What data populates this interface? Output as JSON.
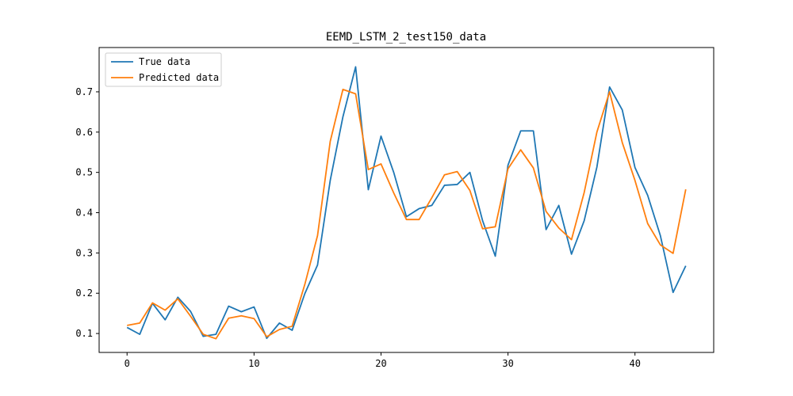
{
  "chart_data": {
    "type": "line",
    "title": "EEMD_LSTM_2_test150_data",
    "xlabel": "",
    "ylabel": "",
    "xlim": [
      -2.2,
      46.2
    ],
    "ylim": [
      0.053,
      0.81
    ],
    "x_ticks": [
      0,
      10,
      20,
      30,
      40
    ],
    "y_ticks": [
      0.1,
      0.2,
      0.3,
      0.4,
      0.5,
      0.6,
      0.7
    ],
    "legend_position": "top-left",
    "grid": false,
    "series": [
      {
        "name": "True data",
        "color": "#1f77b4",
        "x": [
          0,
          1,
          2,
          3,
          4,
          5,
          6,
          7,
          8,
          9,
          10,
          11,
          12,
          13,
          14,
          15,
          16,
          17,
          18,
          19,
          20,
          21,
          22,
          23,
          24,
          25,
          26,
          27,
          28,
          29,
          30,
          31,
          32,
          33,
          34,
          35,
          36,
          37,
          38,
          39,
          40,
          41,
          42,
          43,
          44
        ],
        "values": [
          0.115,
          0.098,
          0.175,
          0.134,
          0.19,
          0.155,
          0.093,
          0.098,
          0.168,
          0.154,
          0.166,
          0.088,
          0.126,
          0.108,
          0.199,
          0.27,
          0.48,
          0.638,
          0.762,
          0.457,
          0.59,
          0.5,
          0.39,
          0.41,
          0.418,
          0.468,
          0.47,
          0.5,
          0.38,
          0.292,
          0.518,
          0.603,
          0.603,
          0.358,
          0.418,
          0.297,
          0.38,
          0.513,
          0.712,
          0.655,
          0.512,
          0.443,
          0.343,
          0.202,
          0.268
        ]
      },
      {
        "name": "Predicted data",
        "color": "#ff7f0e",
        "x": [
          0,
          1,
          2,
          3,
          4,
          5,
          6,
          7,
          8,
          9,
          10,
          11,
          12,
          13,
          14,
          15,
          16,
          17,
          18,
          19,
          20,
          21,
          22,
          23,
          24,
          25,
          26,
          27,
          28,
          29,
          30,
          31,
          32,
          33,
          34,
          35,
          36,
          37,
          38,
          39,
          40,
          41,
          42,
          43,
          44
        ],
        "values": [
          0.12,
          0.126,
          0.176,
          0.158,
          0.186,
          0.143,
          0.098,
          0.087,
          0.138,
          0.144,
          0.137,
          0.092,
          0.11,
          0.118,
          0.222,
          0.343,
          0.577,
          0.706,
          0.695,
          0.507,
          0.521,
          0.449,
          0.383,
          0.383,
          0.437,
          0.494,
          0.502,
          0.455,
          0.36,
          0.365,
          0.509,
          0.556,
          0.511,
          0.403,
          0.362,
          0.333,
          0.45,
          0.6,
          0.7,
          0.574,
          0.48,
          0.373,
          0.32,
          0.299,
          0.458
        ]
      }
    ]
  }
}
